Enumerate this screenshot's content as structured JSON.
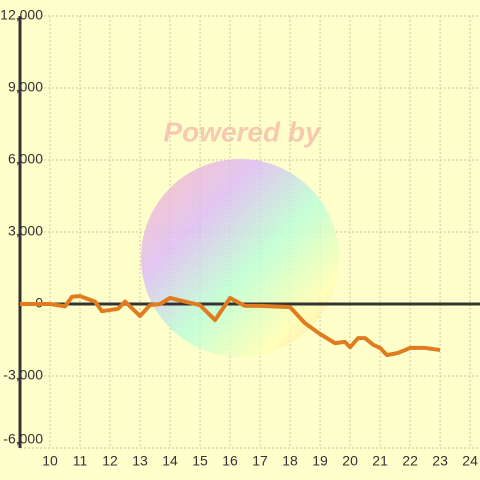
{
  "chart_data": {
    "type": "line",
    "x": [
      9,
      10,
      10.5,
      10.73,
      11,
      11.5,
      11.73,
      12.27,
      12.5,
      13,
      13.33,
      13.67,
      14,
      14.5,
      15,
      15.5,
      16,
      16.5,
      17,
      18,
      18.5,
      19,
      19.5,
      19.83,
      20,
      20.27,
      20.5,
      20.77,
      21,
      21.23,
      21.6,
      22,
      22.5,
      23
    ],
    "values": [
      0,
      0,
      -100,
      300,
      330,
      100,
      -300,
      -200,
      100,
      -500,
      -50,
      0,
      250,
      100,
      -50,
      -670,
      250,
      -80,
      -80,
      -130,
      -800,
      -1250,
      -1630,
      -1580,
      -1800,
      -1420,
      -1420,
      -1700,
      -1830,
      -2130,
      -2040,
      -1830,
      -1830,
      -1920
    ],
    "color": "#e07b20",
    "xlim": [
      9,
      24.33
    ],
    "ylim": [
      -6000,
      12000
    ],
    "xticks": [
      10,
      11,
      12,
      13,
      14,
      15,
      16,
      17,
      18,
      19,
      20,
      21,
      22,
      23,
      24
    ],
    "yticks": [
      {
        "value": -6000,
        "label": "-6,000"
      },
      {
        "value": -3000,
        "label": "-3,000"
      },
      0,
      {
        "value": 3000,
        "label": "3,000"
      },
      {
        "value": 6000,
        "label": "6,000"
      },
      {
        "value": 9000,
        "label": "9,000"
      },
      {
        "value": 12000,
        "label": "12,000"
      }
    ],
    "grid": true,
    "watermark": "Powered by"
  }
}
